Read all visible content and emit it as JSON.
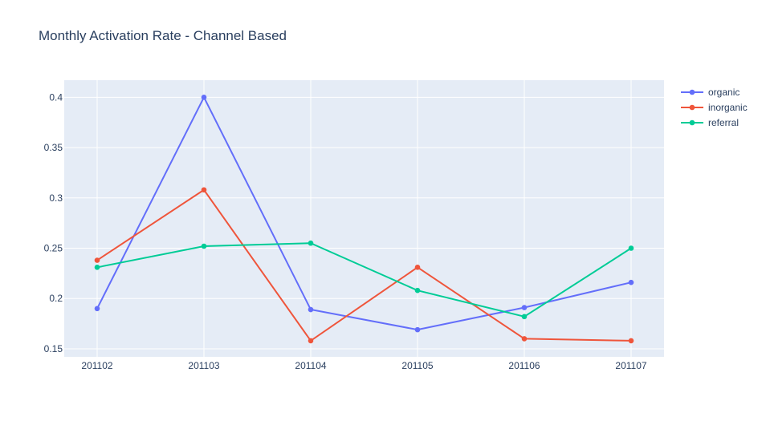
{
  "chart_data": {
    "type": "line",
    "title": "Monthly Activation Rate - Channel Based",
    "xlabel": "",
    "ylabel": "",
    "categories": [
      "201102",
      "201103",
      "201104",
      "201105",
      "201106",
      "201107"
    ],
    "ylim": [
      0.142,
      0.417
    ],
    "yticks": [
      0.15,
      0.2,
      0.25,
      0.3,
      0.35,
      0.4
    ],
    "ytick_labels": [
      "0.15",
      "0.2",
      "0.25",
      "0.3",
      "0.35",
      "0.4"
    ],
    "grid": true,
    "legend_position": "top-right",
    "background_color": "#e5ecf6",
    "series": [
      {
        "name": "organic",
        "color": "#636efa",
        "values": [
          0.19,
          0.4,
          0.189,
          0.169,
          0.191,
          0.216
        ]
      },
      {
        "name": "inorganic",
        "color": "#ef553b",
        "values": [
          0.238,
          0.308,
          0.158,
          0.231,
          0.16,
          0.158
        ]
      },
      {
        "name": "referral",
        "color": "#00cc96",
        "values": [
          0.231,
          0.252,
          0.255,
          0.208,
          0.182,
          0.25
        ]
      }
    ]
  }
}
